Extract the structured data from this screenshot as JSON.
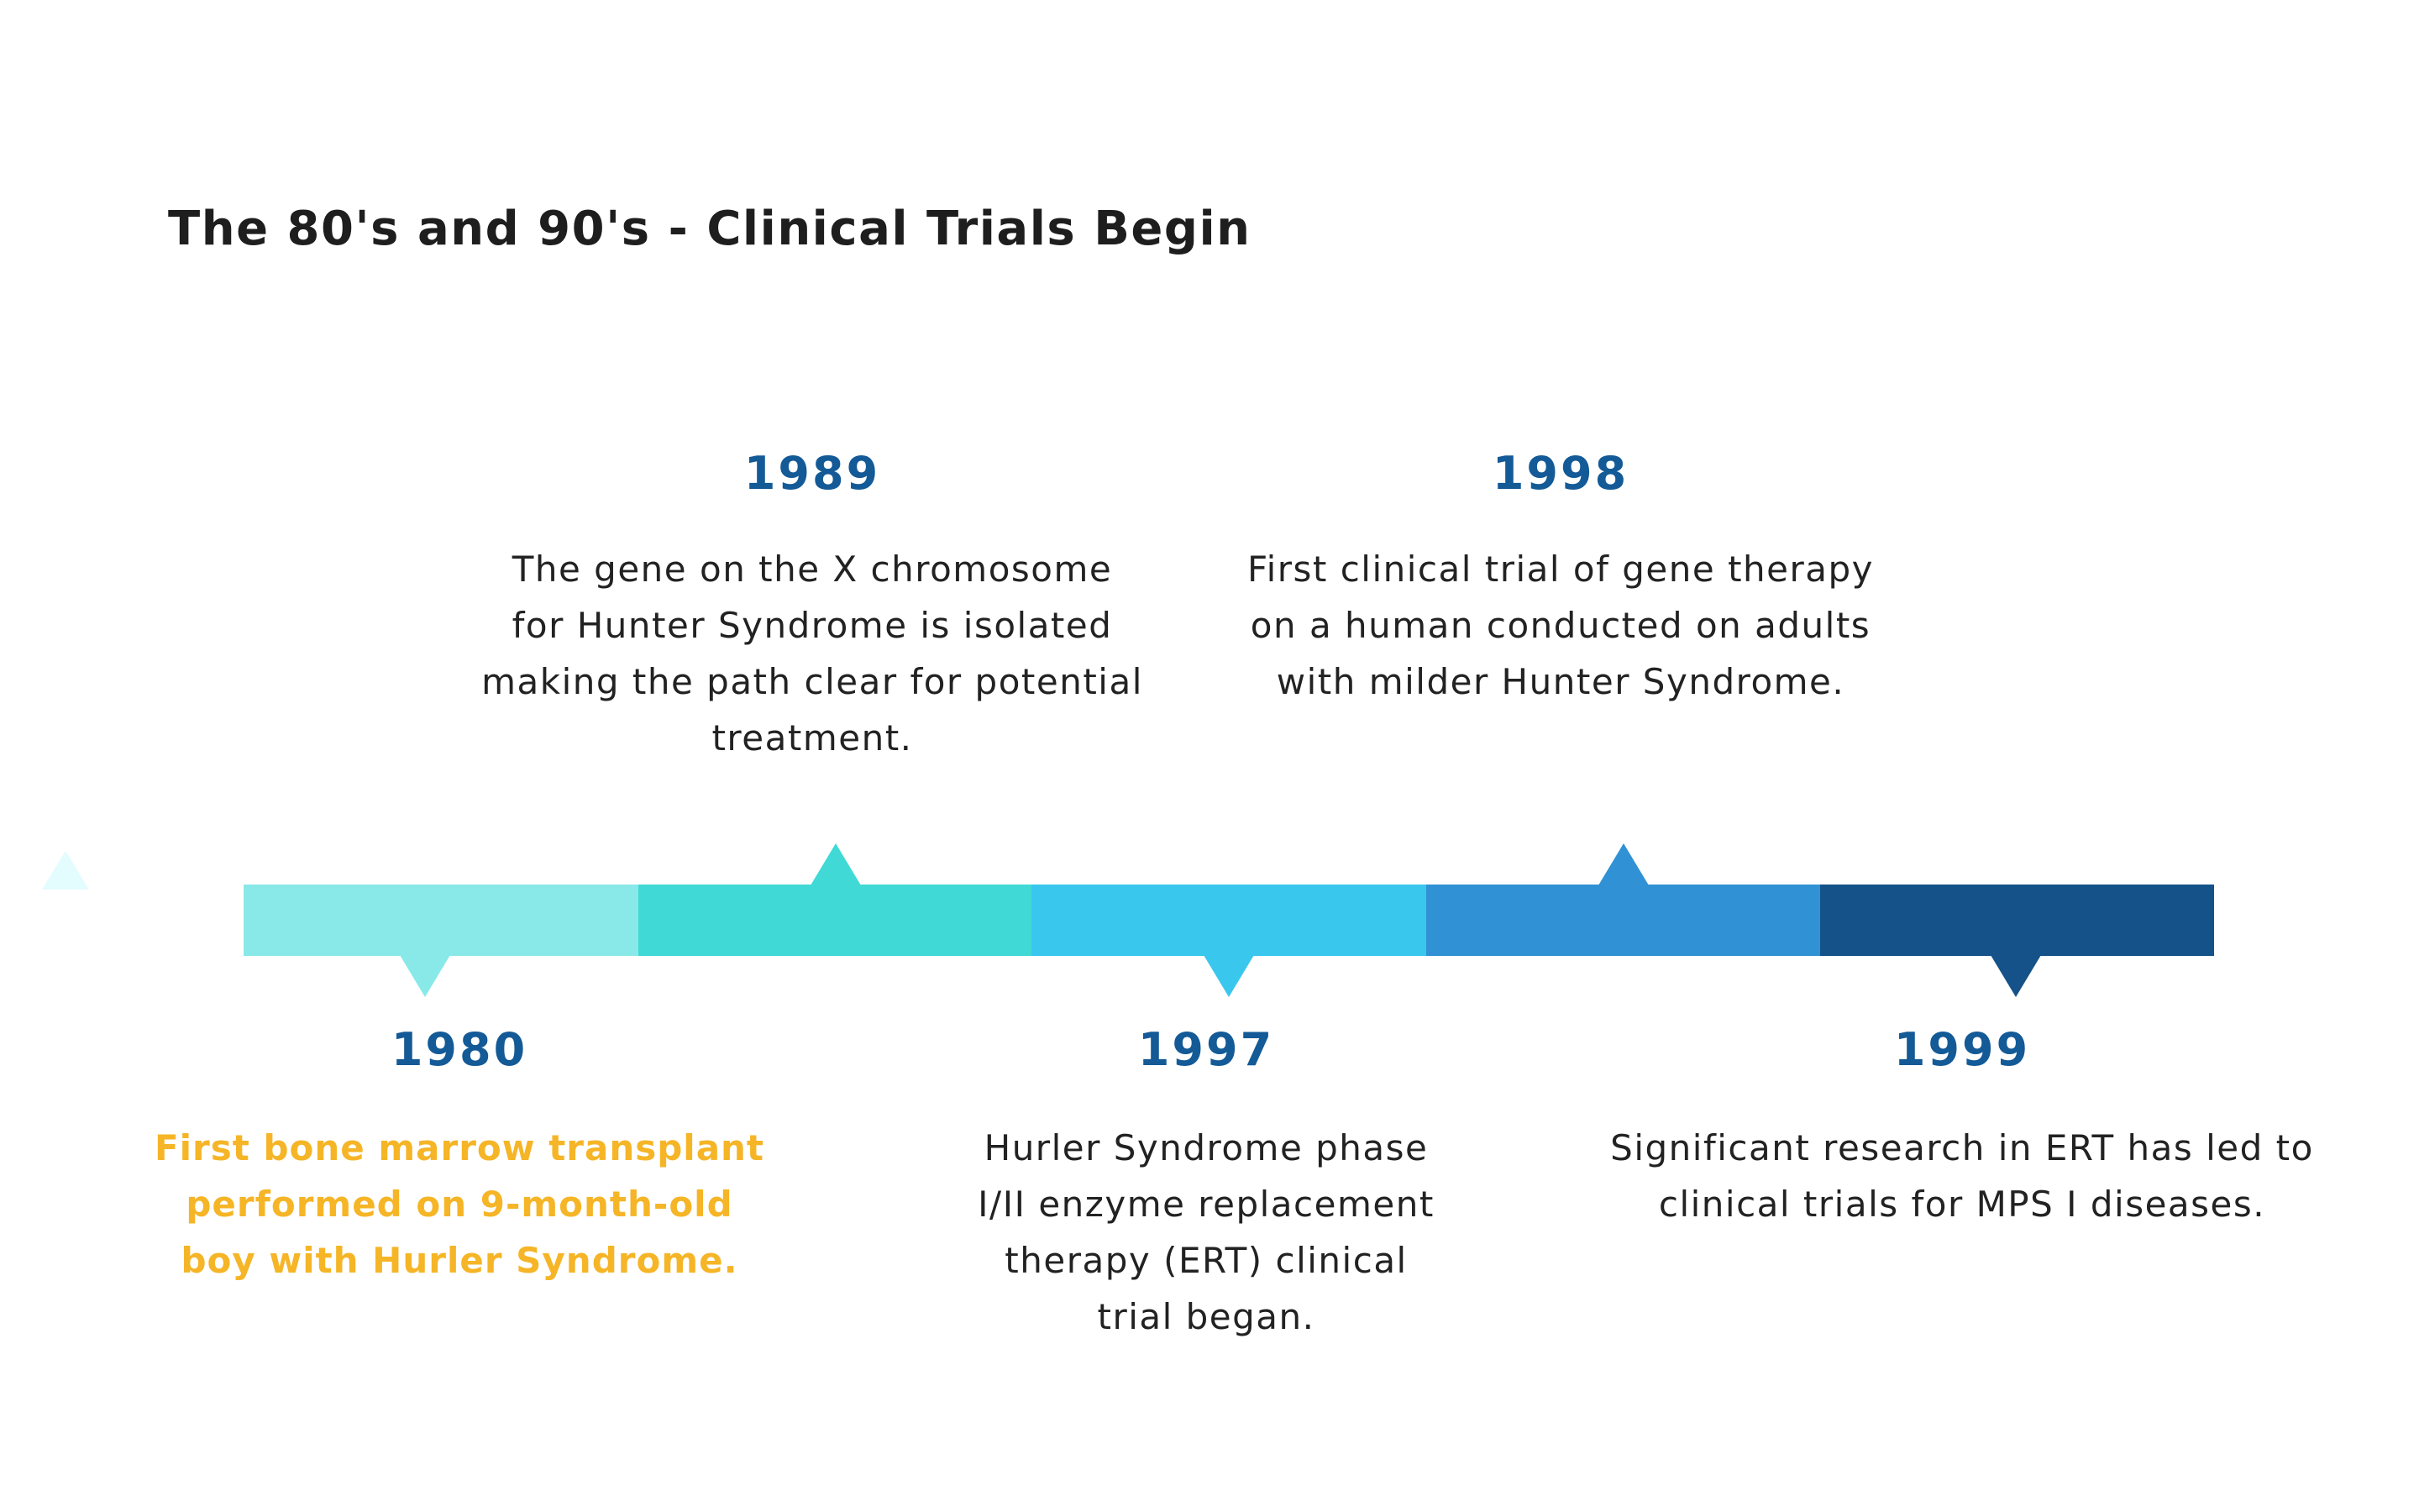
{
  "title": "The 80's and 90's - Clinical Trials Begin",
  "colors": {
    "segment_1": "#89e9e8",
    "segment_2": "#41d9d6",
    "segment_3": "#3ac7ee",
    "segment_4": "#3092d4",
    "segment_5": "#145289",
    "year_text": "#135a97",
    "highlight_text": "#f5b526",
    "decor_marker": "#e3fcfd"
  },
  "events": [
    {
      "year": "1980",
      "lines": [
        "First bone marrow transplant",
        "performed on 9-month-old",
        "boy with Hurler Syndrome."
      ]
    },
    {
      "year": "1989",
      "lines": [
        "The gene on the X chromosome",
        "for Hunter Syndrome is isolated",
        "making the path clear for potential",
        "treatment."
      ]
    },
    {
      "year": "1997",
      "lines": [
        "Hurler Syndrome phase",
        "I/II enzyme replacement",
        "therapy (ERT) clinical",
        "trial began."
      ]
    },
    {
      "year": "1998",
      "lines": [
        "First clinical trial of gene therapy",
        "on a human conducted on adults",
        "with milder Hunter Syndrome."
      ]
    },
    {
      "year": "1999",
      "lines": [
        "Significant research in ERT has led to",
        "clinical trials for MPS I diseases."
      ]
    }
  ]
}
